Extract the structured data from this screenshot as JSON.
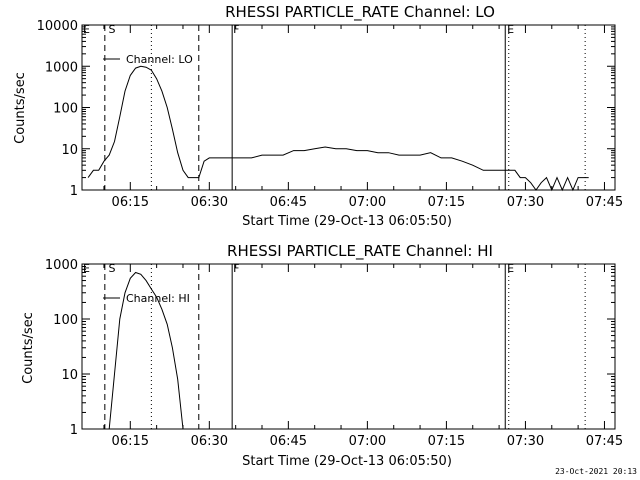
{
  "chart_data": [
    {
      "type": "line",
      "title": "RHESSI PARTICLE_RATE Channel: LO",
      "xlabel": "Start Time (29-Oct-13 06:05:50)",
      "ylabel": "Counts/sec",
      "yscale": "log",
      "ylim": [
        1,
        10000
      ],
      "xlim": [
        "06:05:50",
        "07:47:00"
      ],
      "x_tick_labels": [
        "06:15",
        "06:30",
        "06:45",
        "07:00",
        "07:15",
        "07:30",
        "07:45"
      ],
      "y_tick_labels": [
        "1",
        "10",
        "100",
        "1000",
        "10000"
      ],
      "grid": false,
      "legend": "top-left",
      "series": [
        {
          "name": "Channel: LO",
          "x": [
            "06:07",
            "06:08",
            "06:09",
            "06:10",
            "06:11",
            "06:12",
            "06:13",
            "06:14",
            "06:15",
            "06:16",
            "06:17",
            "06:18",
            "06:19",
            "06:20",
            "06:21",
            "06:22",
            "06:23",
            "06:24",
            "06:25",
            "06:26",
            "06:27",
            "06:28",
            "06:29",
            "06:30",
            "06:31",
            "06:32",
            "06:33",
            "06:34",
            "06:36",
            "06:38",
            "06:40",
            "06:42",
            "06:44",
            "06:46",
            "06:48",
            "06:50",
            "06:52",
            "06:54",
            "06:56",
            "06:58",
            "07:00",
            "07:02",
            "07:04",
            "07:06",
            "07:08",
            "07:10",
            "07:12",
            "07:14",
            "07:16",
            "07:18",
            "07:20",
            "07:22",
            "07:24",
            "07:26",
            "07:28",
            "07:29",
            "07:30",
            "07:31",
            "07:32",
            "07:33",
            "07:34",
            "07:35",
            "07:36",
            "07:37",
            "07:38",
            "07:39",
            "07:40",
            "07:41",
            "07:42"
          ],
          "values": [
            2,
            3,
            3,
            5,
            7,
            15,
            60,
            250,
            600,
            900,
            1000,
            950,
            800,
            500,
            250,
            100,
            30,
            8,
            3,
            2,
            2,
            2,
            5,
            6,
            6,
            6,
            6,
            6,
            6,
            6,
            7,
            7,
            7,
            9,
            9,
            10,
            11,
            10,
            10,
            9,
            9,
            8,
            8,
            7,
            7,
            7,
            8,
            6,
            6,
            5,
            4,
            3,
            3,
            3,
            3,
            2,
            2,
            1.5,
            1,
            1.5,
            2,
            1,
            2,
            1,
            2,
            1,
            2,
            2,
            2
          ]
        }
      ],
      "annotations": [
        "S",
        "F",
        "E"
      ]
    },
    {
      "type": "line",
      "title": "RHESSI PARTICLE_RATE Channel: HI",
      "xlabel": "Start Time (29-Oct-13 06:05:50)",
      "ylabel": "Counts/sec",
      "yscale": "log",
      "ylim": [
        1,
        1000
      ],
      "xlim": [
        "06:05:50",
        "07:47:00"
      ],
      "x_tick_labels": [
        "06:15",
        "06:30",
        "06:45",
        "07:00",
        "07:15",
        "07:30",
        "07:45"
      ],
      "y_tick_labels": [
        "1",
        "10",
        "100",
        "1000"
      ],
      "grid": false,
      "legend": "top-left",
      "series": [
        {
          "name": "Channel: HI",
          "x": [
            "06:11",
            "06:12",
            "06:13",
            "06:14",
            "06:15",
            "06:16",
            "06:17",
            "06:18",
            "06:19",
            "06:20",
            "06:21",
            "06:22",
            "06:23",
            "06:24",
            "06:25"
          ],
          "values": [
            1,
            10,
            100,
            300,
            550,
            700,
            650,
            500,
            350,
            250,
            150,
            80,
            30,
            8,
            1
          ]
        }
      ],
      "annotations": [
        "S",
        "F",
        "E"
      ]
    }
  ],
  "footer": {
    "timestamp": "23-Oct-2021 20:13"
  }
}
